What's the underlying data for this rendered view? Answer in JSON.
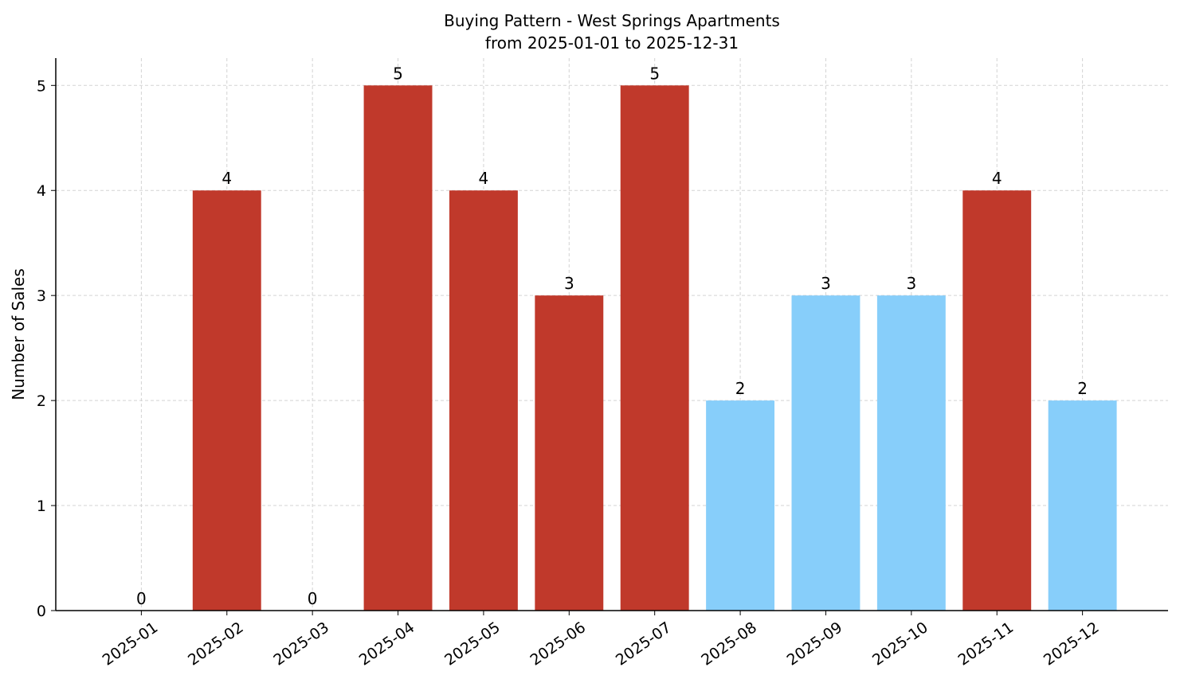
{
  "chart_data": {
    "type": "bar",
    "title": "Buying Pattern - West Springs Apartments",
    "subtitle": "from 2025-01-01 to 2025-12-31",
    "y_label": "Number of Sales",
    "categories": [
      "2025-01",
      "2025-02",
      "2025-03",
      "2025-04",
      "2025-05",
      "2025-06",
      "2025-07",
      "2025-08",
      "2025-09",
      "2025-10",
      "2025-11",
      "2025-12"
    ],
    "values": [
      0,
      4,
      0,
      5,
      4,
      3,
      5,
      2,
      3,
      3,
      4,
      2
    ],
    "colors": [
      "#c0392b",
      "#c0392b",
      "#c0392b",
      "#c0392b",
      "#c0392b",
      "#c0392b",
      "#c0392b",
      "#87cefa",
      "#87cefa",
      "#87cefa",
      "#c0392b",
      "#87cefa"
    ],
    "ylim": [
      0,
      5.26
    ],
    "yticks": [
      0,
      1,
      2,
      3,
      4,
      5
    ],
    "grid": true
  }
}
